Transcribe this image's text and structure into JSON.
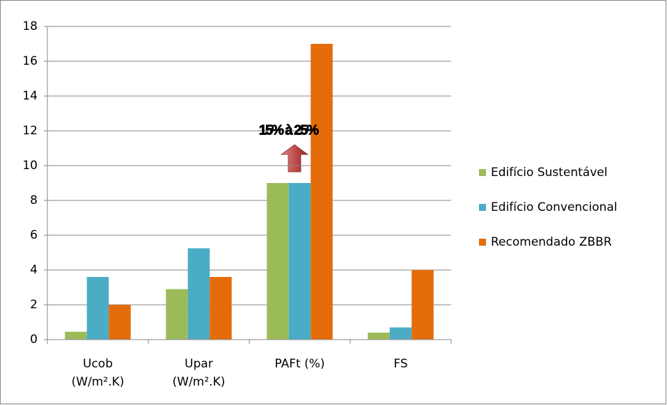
{
  "chart_data": {
    "type": "bar",
    "categories": [
      [
        "Ucob",
        "(W/m².K)"
      ],
      [
        "Upar",
        "(W/m².K)"
      ],
      [
        "PAFt (%)"
      ],
      [
        "FS"
      ]
    ],
    "series": [
      {
        "name": "Edifício Sustentável",
        "color": "#9bbb59",
        "values": [
          0.45,
          2.9,
          9,
          0.4
        ]
      },
      {
        "name": "Edifício Convencional",
        "color": "#4bacc6",
        "values": [
          3.6,
          5.25,
          9,
          0.7
        ]
      },
      {
        "name": "Recomendado ZBBR",
        "color": "#e46c0a",
        "values": [
          2,
          3.6,
          17,
          4
        ]
      }
    ],
    "ylim": [
      0,
      18
    ],
    "yticks": [
      0,
      2,
      4,
      6,
      8,
      10,
      12,
      14,
      16,
      18
    ],
    "grid": true,
    "legend": "right",
    "annotation": "15% à 25%"
  }
}
